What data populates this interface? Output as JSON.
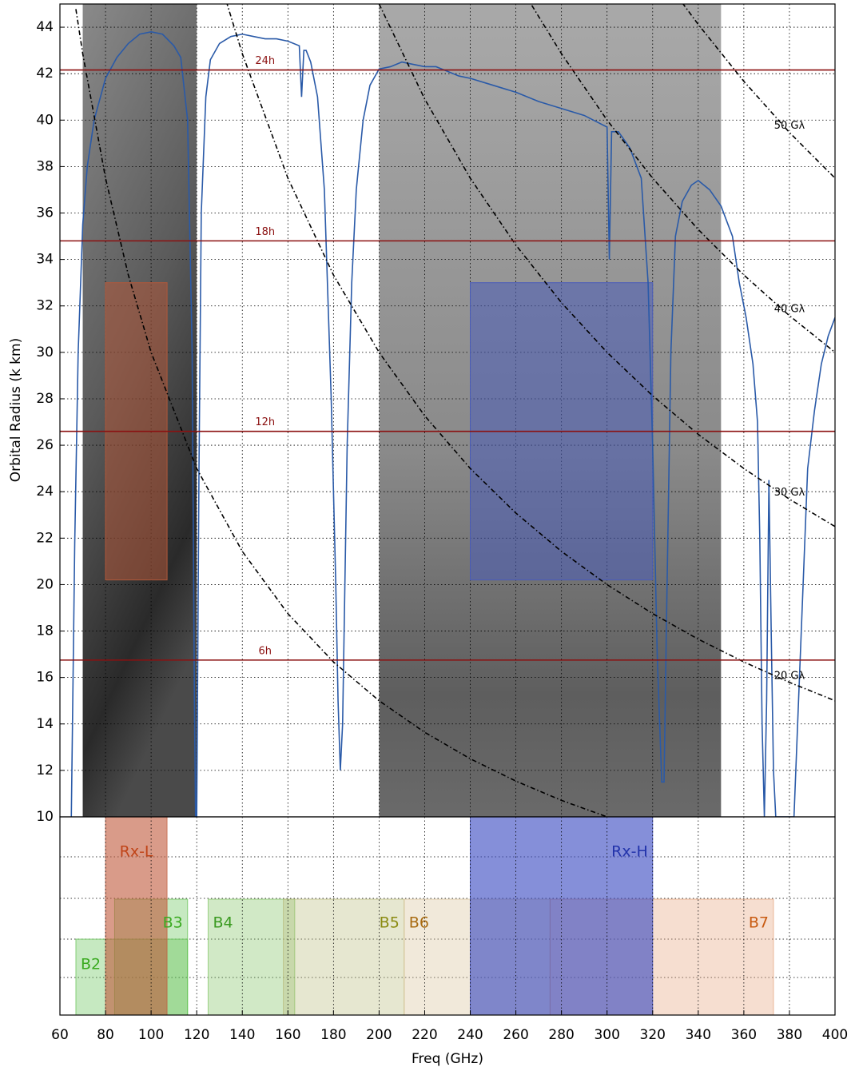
{
  "chart_data": [
    {
      "type": "line",
      "ylabel": "Orbital Radius (k km)",
      "xlim": [
        60,
        400
      ],
      "ylim": [
        10,
        45
      ],
      "xticks": [
        60,
        80,
        100,
        120,
        140,
        160,
        180,
        200,
        220,
        240,
        260,
        280,
        300,
        320,
        340,
        360,
        380,
        400
      ],
      "yticks": [
        10,
        12,
        14,
        16,
        18,
        20,
        22,
        24,
        26,
        28,
        30,
        32,
        34,
        36,
        38,
        40,
        42,
        44
      ],
      "grid": true,
      "shaded_ranges": [
        [
          70,
          120
        ],
        [
          200,
          350
        ]
      ],
      "boxes": [
        {
          "x": [
            80,
            107
          ],
          "y": [
            20.2,
            33
          ],
          "color": "#b0583a"
        },
        {
          "x": [
            240,
            320
          ],
          "y": [
            20.2,
            33
          ],
          "color": "#4a5cb8"
        }
      ],
      "hlines": {
        "color": "#8b1010",
        "lines": [
          {
            "value": 42.16,
            "label": "24h"
          },
          {
            "value": 34.8,
            "label": "18h"
          },
          {
            "value": 26.6,
            "label": "12h"
          },
          {
            "value": 16.75,
            "label": "6h"
          }
        ]
      },
      "series": [
        {
          "color": "#2a5aa8",
          "linestyle": "solid",
          "x": [
            65,
            66.5,
            68,
            70,
            72,
            75,
            80,
            85,
            90,
            95,
            100,
            105,
            110,
            113,
            116,
            118,
            119,
            119.5,
            120,
            121,
            122,
            124,
            126,
            130,
            135,
            140,
            145,
            150,
            155,
            160,
            165,
            166,
            167,
            168,
            170,
            173,
            176,
            179,
            181,
            182,
            183,
            184,
            186,
            188,
            190,
            193,
            196,
            200,
            205,
            210,
            215,
            220,
            225,
            230,
            235,
            240,
            250,
            260,
            270,
            280,
            290,
            300,
            301,
            302,
            305,
            310,
            315,
            318,
            320,
            322,
            324,
            325,
            326,
            328,
            330,
            333,
            337,
            340,
            345,
            350,
            355,
            358,
            361,
            364,
            366,
            367,
            368,
            369,
            370,
            371,
            372,
            373,
            374,
            382,
            384,
            386,
            388,
            391,
            394,
            397,
            400
          ],
          "values": [
            10,
            21.8,
            30,
            35.5,
            38,
            40,
            41.8,
            42.7,
            43.3,
            43.7,
            43.8,
            43.7,
            43.2,
            42.7,
            40,
            30,
            15,
            10,
            10,
            25,
            36,
            41,
            42.6,
            43.3,
            43.6,
            43.7,
            43.6,
            43.5,
            43.5,
            43.4,
            43.2,
            41,
            43,
            43,
            42.5,
            41,
            37,
            28,
            20,
            15,
            12,
            14,
            26,
            33,
            37,
            40,
            41.5,
            42.2,
            42.3,
            42.5,
            42.4,
            42.3,
            42.3,
            42.1,
            41.9,
            41.8,
            41.5,
            41.2,
            40.8,
            40.5,
            40.2,
            39.7,
            34,
            39.5,
            39.5,
            38.8,
            37.5,
            33,
            26,
            17,
            11.5,
            11.5,
            18,
            30,
            35,
            36.5,
            37.2,
            37.4,
            37,
            36.3,
            35,
            33,
            31.5,
            29.5,
            27,
            22,
            14,
            10,
            15,
            24.5,
            18,
            12,
            10,
            10,
            15,
            20,
            25,
            27.5,
            29.5,
            30.7,
            31.5
          ]
        },
        {
          "color": "#000000",
          "linestyle": "dashdot",
          "x": [
            67,
            70,
            80,
            90,
            100,
            120,
            140,
            160,
            180,
            200,
            220,
            240,
            260,
            280,
            300
          ],
          "values": [
            44.78,
            42.86,
            37.5,
            33.33,
            30,
            25,
            21.43,
            18.75,
            16.67,
            15,
            13.64,
            12.5,
            11.54,
            10.71,
            10
          ]
        },
        {
          "name": "20 Gλ",
          "color": "#000000",
          "linestyle": "dashdot",
          "x": [
            133,
            140,
            160,
            180,
            200,
            220,
            240,
            260,
            280,
            300,
            320,
            340,
            360,
            380,
            400
          ],
          "values": [
            45.11,
            42.86,
            37.5,
            33.33,
            30,
            27.27,
            25,
            23.08,
            21.43,
            20,
            18.75,
            17.65,
            16.67,
            15.79,
            15
          ]
        },
        {
          "name": "30 Gλ",
          "color": "#000000",
          "linestyle": "dashdot",
          "x": [
            200,
            220,
            240,
            260,
            280,
            300,
            320,
            340,
            360,
            380,
            400
          ],
          "values": [
            45,
            40.91,
            37.5,
            34.62,
            32.14,
            30,
            28.13,
            26.47,
            25,
            23.68,
            22.5
          ]
        },
        {
          "name": "40 Gλ",
          "color": "#000000",
          "linestyle": "dashdot",
          "x": [
            267,
            280,
            300,
            320,
            340,
            360,
            380,
            400
          ],
          "values": [
            44.94,
            42.86,
            40,
            37.5,
            35.29,
            33.33,
            31.58,
            30
          ]
        },
        {
          "name": "50 Gλ",
          "color": "#000000",
          "linestyle": "dashdot",
          "x": [
            333,
            340,
            360,
            380,
            400
          ],
          "values": [
            45.05,
            44.12,
            41.67,
            39.47,
            37.5
          ]
        }
      ]
    },
    {
      "type": "bands",
      "xlabel": "Freq (GHz)",
      "bands": [
        {
          "name": "Rx-L",
          "range": [
            80,
            107
          ],
          "color": "#c0583a",
          "label_color": "#c04418"
        },
        {
          "name": "Rx-H",
          "range": [
            240,
            320
          ],
          "color": "#3344c0",
          "label_color": "#2233aa"
        },
        {
          "name": "B2",
          "range": [
            67,
            116
          ],
          "color": "#5cbf4c",
          "label_color": "#3aaa20"
        },
        {
          "name": "B3",
          "range": [
            84,
            116
          ],
          "color": "#5cbf4c",
          "label_color": "#3aaa20"
        },
        {
          "name": "B4",
          "range": [
            125,
            163
          ],
          "color": "#7cc05c",
          "label_color": "#3a9a20"
        },
        {
          "name": "B5",
          "range": [
            158,
            211
          ],
          "color": "#b7b978",
          "label_color": "#8a8a10"
        },
        {
          "name": "B6",
          "range": [
            211,
            275
          ],
          "color": "#d6bf95",
          "label_color": "#a86a10"
        },
        {
          "name": "B7",
          "range": [
            275,
            373
          ],
          "color": "#e6a078",
          "label_color": "#c85a10"
        }
      ]
    }
  ]
}
